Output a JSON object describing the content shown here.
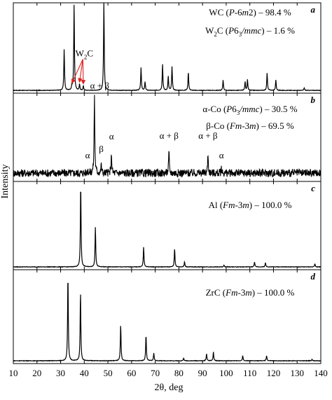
{
  "chart_data": {
    "type": "line",
    "xlabel": "2θ, deg",
    "ylabel": "Intensity",
    "xlim": [
      10,
      140
    ],
    "x_ticks": [
      "10",
      "20",
      "30",
      "40",
      "50",
      "60",
      "70",
      "80",
      "90",
      "100",
      "110",
      "120",
      "130",
      "140"
    ],
    "grid": false,
    "panels": [
      {
        "letter": "a",
        "phase_lines": [
          [
            {
              "t": "WC ("
            },
            {
              "t": "P",
              "i": true
            },
            {
              "t": "-6"
            },
            {
              "t": "m",
              "i": true
            },
            {
              "t": "2) – 98.4 %"
            }
          ],
          [
            {
              "t": "W"
            },
            {
              "t": "2",
              "sub": true
            },
            {
              "t": "C ("
            },
            {
              "t": "P",
              "i": true
            },
            {
              "t": "6"
            },
            {
              "t": "3",
              "sub": true
            },
            {
              "t": "/mmc",
              "i": true
            },
            {
              "t": ") – 1.6 %"
            }
          ]
        ],
        "noise": 0.003,
        "peaks": [
          {
            "x": 31.5,
            "h": 0.47
          },
          {
            "x": 34.8,
            "h": 0.06
          },
          {
            "x": 35.7,
            "h": 0.98
          },
          {
            "x": 38.0,
            "h": 0.07
          },
          {
            "x": 39.6,
            "h": 0.05
          },
          {
            "x": 48.3,
            "h": 1.0
          },
          {
            "x": 64.0,
            "h": 0.26
          },
          {
            "x": 65.7,
            "h": 0.1
          },
          {
            "x": 73.1,
            "h": 0.3
          },
          {
            "x": 75.5,
            "h": 0.16
          },
          {
            "x": 77.1,
            "h": 0.27
          },
          {
            "x": 84.0,
            "h": 0.21
          },
          {
            "x": 98.7,
            "h": 0.12
          },
          {
            "x": 108.0,
            "h": 0.1
          },
          {
            "x": 109.0,
            "h": 0.12
          },
          {
            "x": 117.3,
            "h": 0.2
          },
          {
            "x": 121.0,
            "h": 0.12
          },
          {
            "x": 133.0,
            "h": 0.03
          }
        ],
        "labels": [
          {
            "parts": [
              {
                "t": "W"
              },
              {
                "t": "2",
                "sub": true
              },
              {
                "t": "C"
              }
            ],
            "x": 40.0,
            "y": 0.36,
            "arrows": [
              34.8,
              38.0,
              39.6
            ]
          }
        ]
      },
      {
        "letter": "b",
        "phase_lines": [
          [
            {
              "t": "α-Co ("
            },
            {
              "t": "P",
              "i": true
            },
            {
              "t": "6"
            },
            {
              "t": "3",
              "sub": true
            },
            {
              "t": "/mmc",
              "i": true
            },
            {
              "t": ") – 30.5 %"
            }
          ],
          [
            {
              "t": "β-Co ("
            },
            {
              "t": "Fm",
              "i": true
            },
            {
              "t": "-3"
            },
            {
              "t": "m",
              "i": true
            },
            {
              "t": ") – 69.5 %"
            }
          ]
        ],
        "noise": 0.05,
        "peaks": [
          {
            "x": 41.5,
            "h": 0.05
          },
          {
            "x": 44.3,
            "h": 1.0
          },
          {
            "x": 47.2,
            "h": 0.11
          },
          {
            "x": 51.5,
            "h": 0.25
          },
          {
            "x": 75.8,
            "h": 0.27
          },
          {
            "x": 92.3,
            "h": 0.25
          },
          {
            "x": 98.0,
            "h": 0.06
          }
        ],
        "labels": [
          {
            "parts": [
              {
                "t": "α + β"
              }
            ],
            "x": 46.5,
            "y": 1.05
          },
          {
            "parts": [
              {
                "t": "α"
              }
            ],
            "x": 41.4,
            "y": 0.16
          },
          {
            "parts": [
              {
                "t": "β"
              }
            ],
            "x": 47.2,
            "y": 0.24
          },
          {
            "parts": [
              {
                "t": "α"
              }
            ],
            "x": 51.5,
            "y": 0.4
          },
          {
            "parts": [
              {
                "t": "α + β"
              }
            ],
            "x": 75.8,
            "y": 0.41
          },
          {
            "parts": [
              {
                "t": "α + β"
              }
            ],
            "x": 92.3,
            "y": 0.41
          },
          {
            "parts": [
              {
                "t": "α"
              }
            ],
            "x": 98.0,
            "y": 0.16
          }
        ]
      },
      {
        "letter": "c",
        "phase_lines": [
          [
            {
              "t": "Al ("
            },
            {
              "t": "Fm",
              "i": true
            },
            {
              "t": "-3"
            },
            {
              "t": "m",
              "i": true
            },
            {
              "t": ") – 100.0 %"
            }
          ]
        ],
        "noise": 0.003,
        "peaks": [
          {
            "x": 38.5,
            "h": 1.0
          },
          {
            "x": 44.7,
            "h": 0.48
          },
          {
            "x": 65.1,
            "h": 0.24
          },
          {
            "x": 78.2,
            "h": 0.22
          },
          {
            "x": 82.4,
            "h": 0.06
          },
          {
            "x": 99.1,
            "h": 0.02
          },
          {
            "x": 112.0,
            "h": 0.06
          },
          {
            "x": 116.6,
            "h": 0.05
          },
          {
            "x": 137.5,
            "h": 0.04
          }
        ],
        "labels": []
      },
      {
        "letter": "d",
        "phase_lines": [
          [
            {
              "t": "ZrC ("
            },
            {
              "t": "Fm",
              "i": true
            },
            {
              "t": "-3"
            },
            {
              "t": "m",
              "i": true
            },
            {
              "t": ") – 100.0 %"
            }
          ]
        ],
        "noise": 0.003,
        "peaks": [
          {
            "x": 33.1,
            "h": 1.0
          },
          {
            "x": 38.4,
            "h": 0.8
          },
          {
            "x": 55.4,
            "h": 0.42
          },
          {
            "x": 66.1,
            "h": 0.3
          },
          {
            "x": 69.4,
            "h": 0.09
          },
          {
            "x": 82.0,
            "h": 0.03
          },
          {
            "x": 91.7,
            "h": 0.08
          },
          {
            "x": 94.6,
            "h": 0.1
          },
          {
            "x": 107.0,
            "h": 0.06
          },
          {
            "x": 117.1,
            "h": 0.06
          },
          {
            "x": 136.3,
            "h": 0.02
          }
        ],
        "labels": []
      }
    ],
    "colors": {
      "trace": "#000000",
      "arrow": "#e02020",
      "axis": "#000000"
    }
  }
}
